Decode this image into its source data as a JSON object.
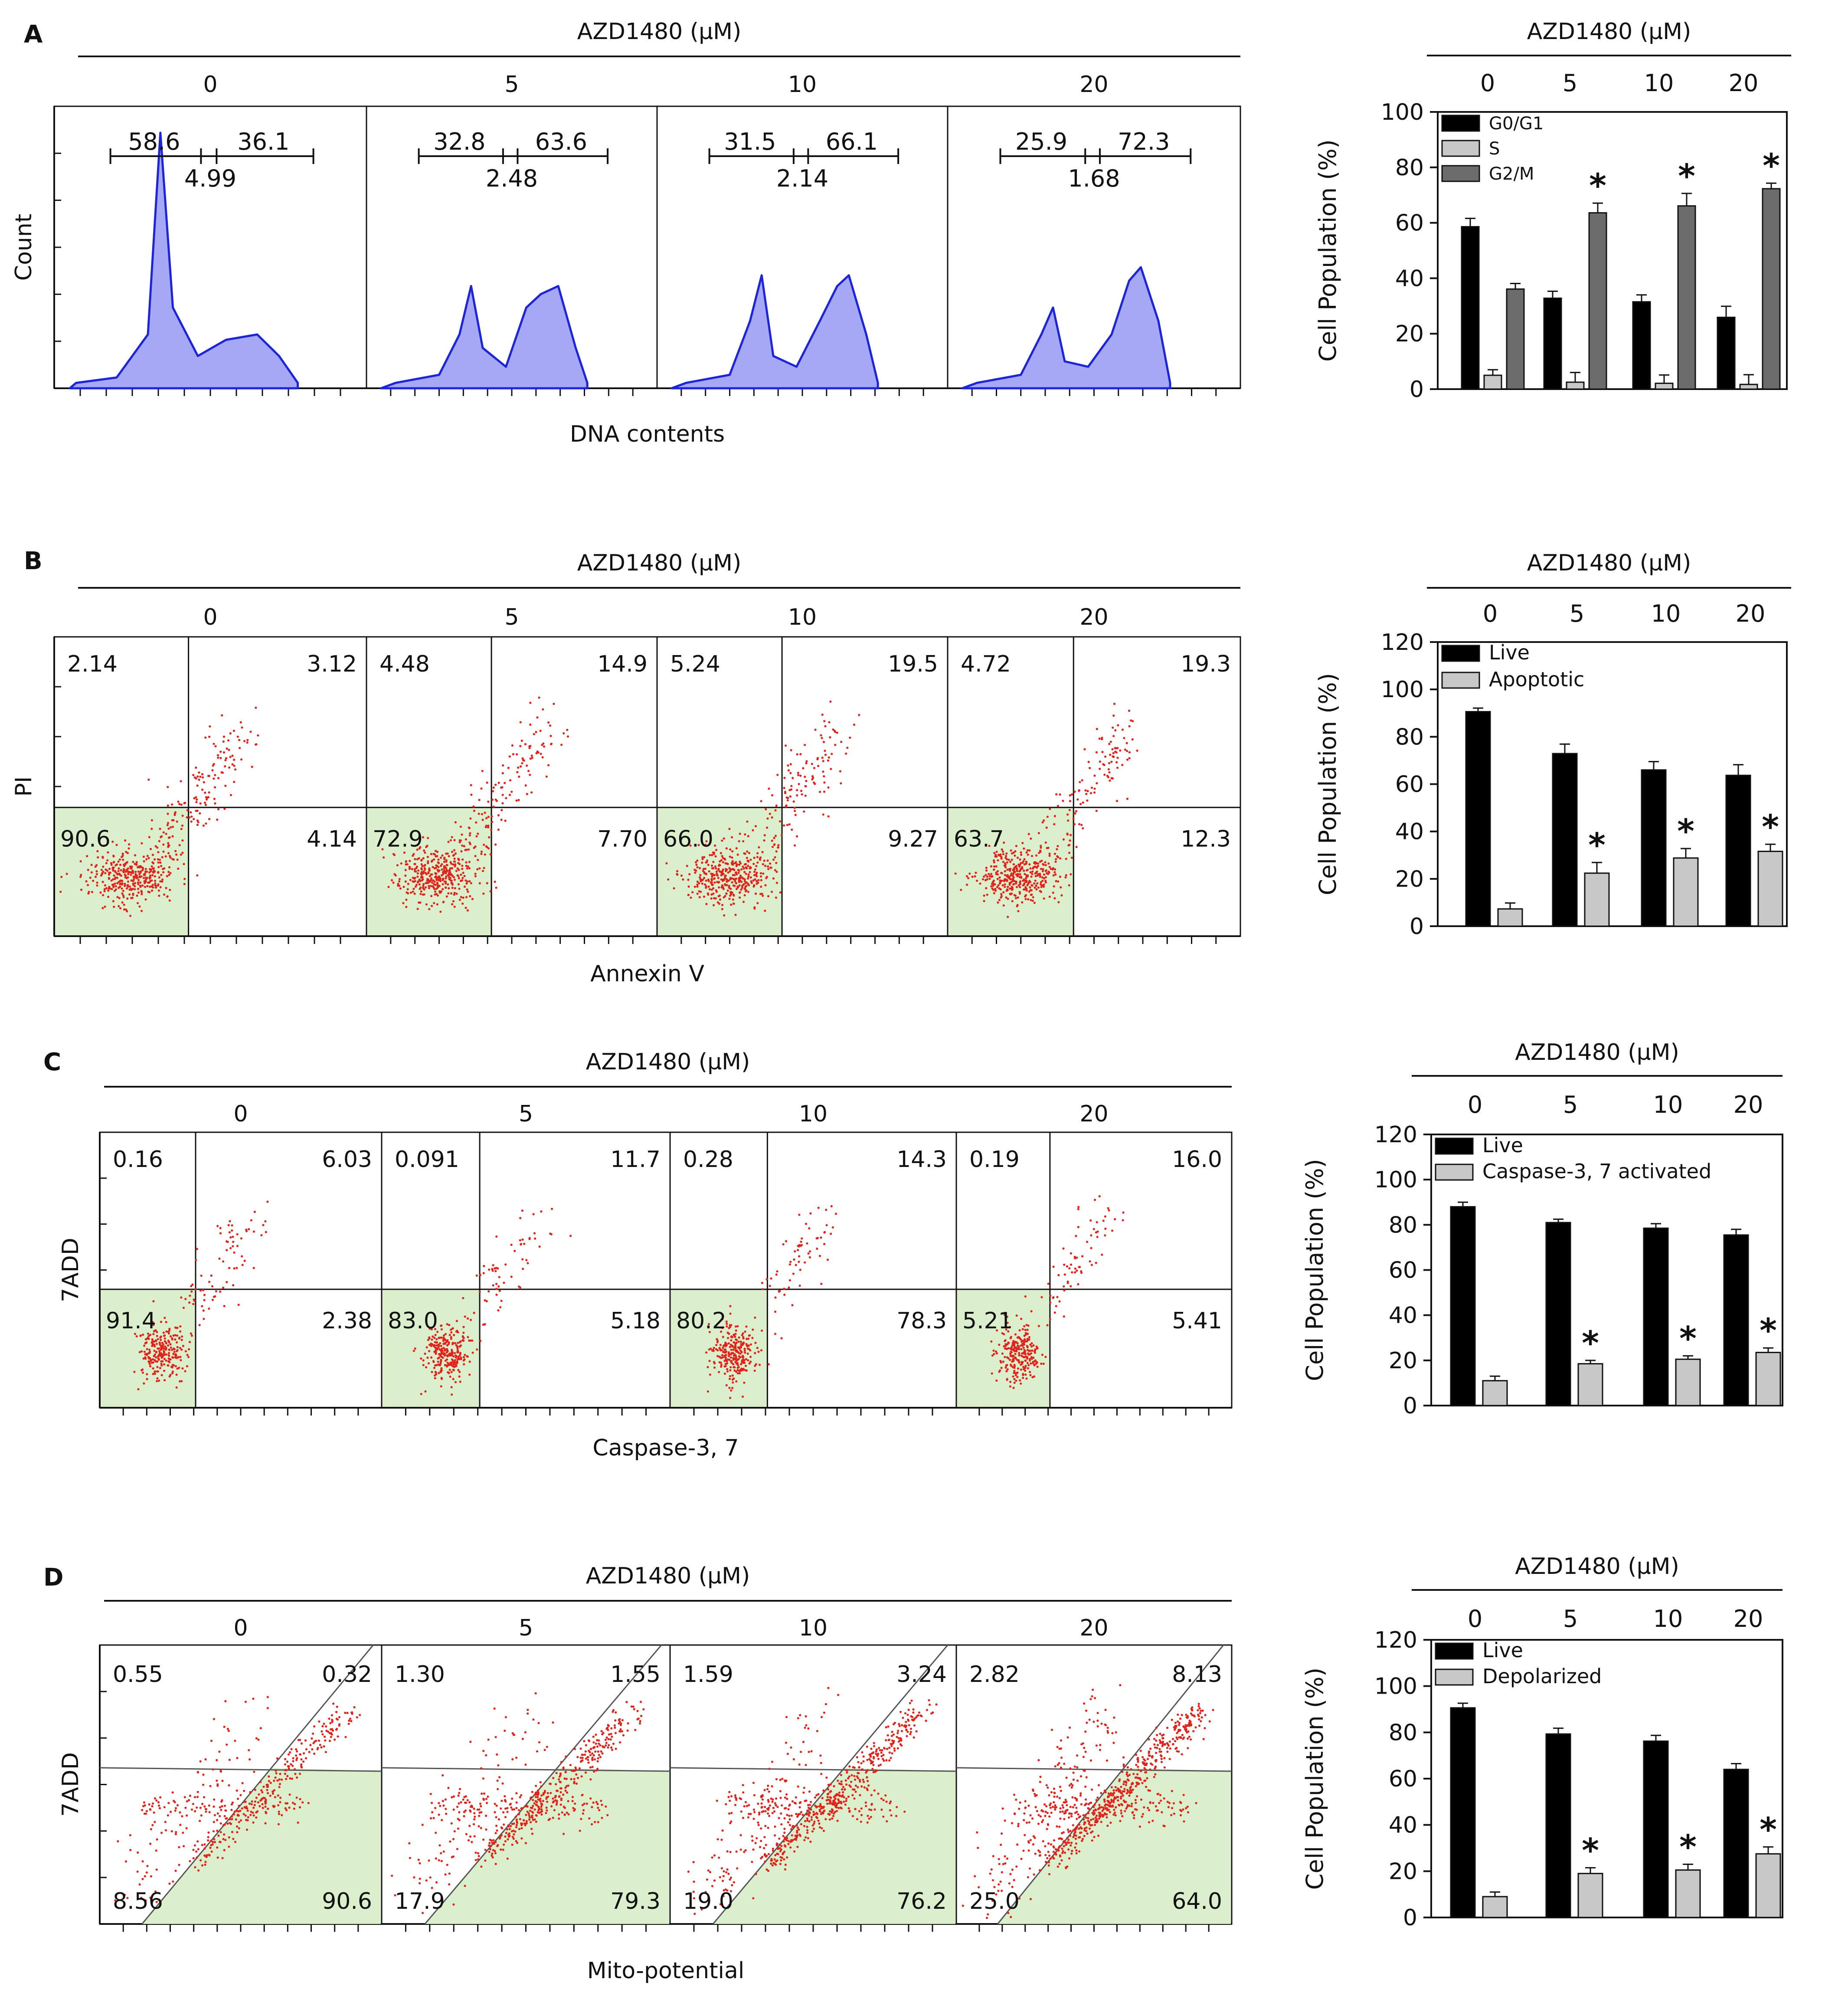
{
  "palette": {
    "histo_fill": "#a7a8f5",
    "histo_line": "#1d25d8",
    "dots": "#e0231b",
    "gate_fill": "#dcefcd",
    "axis": "#111111",
    "bar_dark": "#000000",
    "bar_light": "#c8c8c8",
    "bar_mid": "#6c6c6c"
  },
  "chart_data": [
    {
      "panel": "A",
      "type": "histogram",
      "header": "AZD1480 (μM)",
      "doses": [
        "0",
        "5",
        "10",
        "20"
      ],
      "ylabel": "Count",
      "xlabel": "DNA contents",
      "subplots": [
        {
          "g1": "58.6",
          "g2m": "36.1",
          "s": "4.99",
          "profile": [
            [
              0.07,
              0.02
            ],
            [
              0.2,
              0.04
            ],
            [
              0.3,
              0.2
            ],
            [
              0.34,
              0.95
            ],
            [
              0.38,
              0.3
            ],
            [
              0.46,
              0.12
            ],
            [
              0.55,
              0.18
            ],
            [
              0.65,
              0.2
            ],
            [
              0.72,
              0.12
            ],
            [
              0.78,
              0.02
            ]
          ]
        },
        {
          "g1": "32.8",
          "g2m": "63.6",
          "s": "2.48",
          "profile": [
            [
              0.1,
              0.02
            ],
            [
              0.25,
              0.05
            ],
            [
              0.32,
              0.2
            ],
            [
              0.36,
              0.38
            ],
            [
              0.4,
              0.15
            ],
            [
              0.48,
              0.08
            ],
            [
              0.55,
              0.3
            ],
            [
              0.6,
              0.35
            ],
            [
              0.66,
              0.38
            ],
            [
              0.72,
              0.15
            ],
            [
              0.76,
              0.02
            ]
          ]
        },
        {
          "g1": "31.5",
          "g2m": "66.1",
          "s": "2.14",
          "profile": [
            [
              0.1,
              0.02
            ],
            [
              0.25,
              0.05
            ],
            [
              0.32,
              0.25
            ],
            [
              0.36,
              0.42
            ],
            [
              0.4,
              0.12
            ],
            [
              0.48,
              0.08
            ],
            [
              0.56,
              0.25
            ],
            [
              0.62,
              0.38
            ],
            [
              0.66,
              0.42
            ],
            [
              0.72,
              0.2
            ],
            [
              0.76,
              0.02
            ]
          ]
        },
        {
          "g1": "25.9",
          "g2m": "72.3",
          "s": "1.68",
          "profile": [
            [
              0.1,
              0.02
            ],
            [
              0.25,
              0.05
            ],
            [
              0.32,
              0.2
            ],
            [
              0.36,
              0.3
            ],
            [
              0.4,
              0.1
            ],
            [
              0.48,
              0.08
            ],
            [
              0.56,
              0.2
            ],
            [
              0.62,
              0.4
            ],
            [
              0.66,
              0.45
            ],
            [
              0.72,
              0.25
            ],
            [
              0.76,
              0.02
            ]
          ]
        }
      ]
    },
    {
      "panel": "A",
      "type": "bar",
      "header": "AZD1480 (μM)",
      "categories": [
        "0",
        "5",
        "10",
        "20"
      ],
      "ylabel": "Cell Population (%)",
      "ylim": [
        0,
        100
      ],
      "yticks": [
        "0",
        "20",
        "40",
        "60",
        "80",
        "100"
      ],
      "series": [
        {
          "name": "G0/G1",
          "values": [
            58.6,
            32.8,
            31.5,
            25.9
          ],
          "errors": [
            3,
            2.5,
            2.5,
            4
          ],
          "star": [
            false,
            false,
            false,
            false
          ]
        },
        {
          "name": "S",
          "values": [
            5,
            2.5,
            2.1,
            1.7
          ],
          "errors": [
            2,
            3.5,
            3,
            3.5
          ],
          "star": [
            false,
            false,
            false,
            false
          ]
        },
        {
          "name": "G2/M",
          "values": [
            36.1,
            63.6,
            66.1,
            72.3
          ],
          "errors": [
            2,
            3.5,
            4.5,
            2
          ],
          "star": [
            false,
            true,
            true,
            true
          ]
        }
      ],
      "star_symbol": "*"
    },
    {
      "panel": "B",
      "type": "scatter-quadrant",
      "header": "AZD1480 (μM)",
      "doses": [
        "0",
        "5",
        "10",
        "20"
      ],
      "ylabel": "PI",
      "xlabel": "Annexin V",
      "subplots": [
        {
          "ul": "2.14",
          "ur": "3.12",
          "ll": "90.6",
          "lr": "4.14"
        },
        {
          "ul": "4.48",
          "ur": "14.9",
          "ll": "72.9",
          "lr": "7.70"
        },
        {
          "ul": "5.24",
          "ur": "19.5",
          "ll": "66.0",
          "lr": "9.27"
        },
        {
          "ul": "4.72",
          "ur": "19.3",
          "ll": "63.7",
          "lr": "12.3"
        }
      ]
    },
    {
      "panel": "B",
      "type": "bar",
      "header": "AZD1480 (μM)",
      "categories": [
        "0",
        "5",
        "10",
        "20"
      ],
      "ylabel": "Cell Population (%)",
      "ylim": [
        0,
        120
      ],
      "yticks": [
        "0",
        "20",
        "40",
        "60",
        "80",
        "100",
        "120"
      ],
      "series": [
        {
          "name": "Live",
          "values": [
            90.6,
            72.9,
            66.0,
            63.7
          ],
          "errors": [
            1.5,
            4,
            3.5,
            4.5
          ],
          "star": [
            false,
            false,
            false,
            false
          ]
        },
        {
          "name": "Apoptotic",
          "values": [
            7.3,
            22.4,
            28.8,
            31.6
          ],
          "errors": [
            2.5,
            4.5,
            4,
            3
          ],
          "star": [
            false,
            true,
            true,
            true
          ]
        }
      ],
      "star_symbol": "*"
    },
    {
      "panel": "C",
      "type": "scatter-quadrant",
      "header": "AZD1480 (μM)",
      "doses": [
        "0",
        "5",
        "10",
        "20"
      ],
      "ylabel": "7ADD",
      "xlabel": "Caspase-3, 7",
      "subplots": [
        {
          "ul": "0.16",
          "ur": "6.03",
          "ll": "91.4",
          "lr": "2.38"
        },
        {
          "ul": "0.091",
          "ur": "11.7",
          "ll": "83.0",
          "lr": "5.18"
        },
        {
          "ul": "0.28",
          "ur": "14.3",
          "ll": "80.2",
          "lr": "78.3"
        },
        {
          "ul": "0.19",
          "ur": "16.0",
          "ll": "5.21",
          "lr": "5.41"
        }
      ]
    },
    {
      "panel": "C",
      "type": "bar",
      "header": "AZD1480 (μM)",
      "categories": [
        "0",
        "5",
        "10",
        "20"
      ],
      "ylabel": "Cell Population (%)",
      "ylim": [
        0,
        120
      ],
      "yticks": [
        "0",
        "20",
        "40",
        "60",
        "80",
        "100",
        "120"
      ],
      "series": [
        {
          "name": "Live",
          "values": [
            88,
            81,
            78.5,
            75.5
          ],
          "errors": [
            2,
            1.5,
            2,
            2.5
          ],
          "star": [
            false,
            false,
            false,
            false
          ]
        },
        {
          "name": "Caspase-3, 7 activated",
          "values": [
            11,
            18.5,
            20.5,
            23.5
          ],
          "errors": [
            2,
            1.5,
            1.5,
            2
          ],
          "star": [
            false,
            true,
            true,
            true
          ]
        }
      ],
      "star_symbol": "*"
    },
    {
      "panel": "D",
      "type": "scatter-gate",
      "header": "AZD1480 (μM)",
      "doses": [
        "0",
        "5",
        "10",
        "20"
      ],
      "ylabel": "7ADD",
      "xlabel": "Mito-potential",
      "subplots": [
        {
          "ul": "0.55",
          "ur": "0.32",
          "ll": "8.56",
          "lr": "90.6"
        },
        {
          "ul": "1.30",
          "ur": "1.55",
          "ll": "17.9",
          "lr": "79.3"
        },
        {
          "ul": "1.59",
          "ur": "3.24",
          "ll": "19.0",
          "lr": "76.2"
        },
        {
          "ul": "2.82",
          "ur": "8.13",
          "ll": "25.0",
          "lr": "64.0"
        }
      ]
    },
    {
      "panel": "D",
      "type": "bar",
      "header": "AZD1480 (μM)",
      "categories": [
        "0",
        "5",
        "10",
        "20"
      ],
      "ylabel": "Cell Population (%)",
      "ylim": [
        0,
        120
      ],
      "yticks": [
        "0",
        "20",
        "40",
        "60",
        "80",
        "100",
        "120"
      ],
      "series": [
        {
          "name": "Live",
          "values": [
            90.6,
            79.3,
            76.2,
            64.0
          ],
          "errors": [
            2,
            2.5,
            2.5,
            2.5
          ],
          "star": [
            false,
            false,
            false,
            false
          ]
        },
        {
          "name": "Depolarized",
          "values": [
            9,
            19,
            20.5,
            27.5
          ],
          "errors": [
            2,
            2.5,
            2.5,
            3
          ],
          "star": [
            false,
            true,
            true,
            true
          ]
        }
      ],
      "star_symbol": "*"
    }
  ]
}
